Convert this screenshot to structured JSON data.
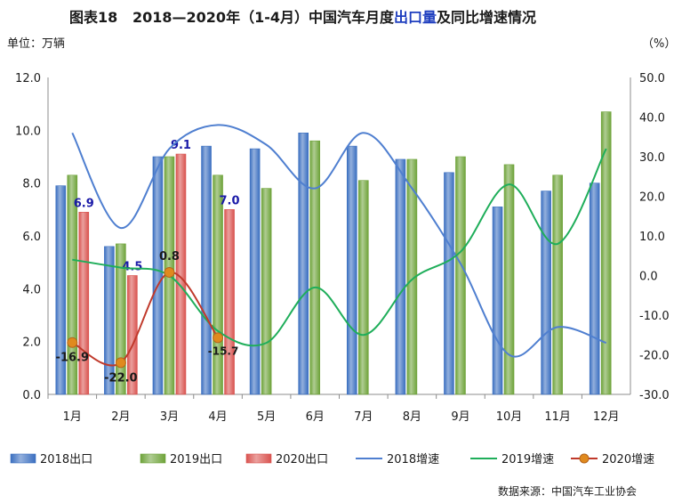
{
  "header": {
    "fig_no": "图表18",
    "title_a": "2018—2020年（1-4月）中国汽车月度",
    "title_hl": "出口量",
    "title_b": "及同比增速情况"
  },
  "units": {
    "left": "单位：万辆",
    "right": "（%）"
  },
  "source": "数据来源：中国汽车工业协会",
  "colors": {
    "bar2018": "#3b6fc0",
    "bar2019": "#6ea33a",
    "bar2020": "#d9534f",
    "line2018": "#4f7fd0",
    "line2019": "#1fae5a",
    "line2020": "#c0392b",
    "marker2020": "#e08a1e",
    "label": "#1a1aa8"
  },
  "chart_data": {
    "type": "bar",
    "categories": [
      "1月",
      "2月",
      "3月",
      "4月",
      "5月",
      "6月",
      "7月",
      "8月",
      "9月",
      "10月",
      "11月",
      "12月"
    ],
    "y_left": {
      "min": 0,
      "max": 12,
      "step": 2,
      "tick_labels": [
        "0.0",
        "2.0",
        "4.0",
        "6.0",
        "8.0",
        "10.0",
        "12.0"
      ]
    },
    "y_right": {
      "min": -30,
      "max": 50,
      "step": 10,
      "tick_labels": [
        "-30.0",
        "-20.0",
        "-10.0",
        "0.0",
        "10.0",
        "20.0",
        "30.0",
        "40.0",
        "50.0"
      ]
    },
    "bar_series": [
      {
        "name": "2018出口",
        "values": [
          7.9,
          5.6,
          9.0,
          9.4,
          9.3,
          9.9,
          9.4,
          8.9,
          8.4,
          7.1,
          7.7,
          8.0
        ]
      },
      {
        "name": "2019出口",
        "values": [
          8.3,
          5.7,
          9.0,
          8.3,
          7.8,
          9.6,
          8.1,
          8.9,
          9.0,
          8.7,
          8.3,
          10.7
        ]
      },
      {
        "name": "2020出口",
        "values": [
          6.9,
          4.5,
          9.1,
          7.0
        ]
      }
    ],
    "bar_labels": [
      "6.9",
      "4.5",
      "9.1",
      "7.0"
    ],
    "line_series": [
      {
        "name": "2018增速",
        "values": [
          36,
          12,
          32,
          38,
          33,
          22,
          36,
          22,
          3,
          -20,
          -13,
          -17
        ]
      },
      {
        "name": "2019增速",
        "values": [
          4,
          2,
          0,
          -14,
          -17,
          -3,
          -15,
          -1,
          6,
          23,
          8,
          32
        ]
      },
      {
        "name": "2020增速",
        "values": [
          -16.9,
          -22.0,
          0.8,
          -15.7
        ]
      }
    ],
    "line_labels": [
      "-16.9",
      "-22.0",
      "0.8",
      "-15.7"
    ],
    "legend_position": "bottom",
    "grid": false
  }
}
